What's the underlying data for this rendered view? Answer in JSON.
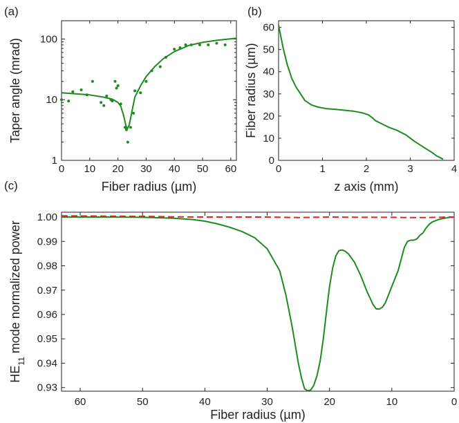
{
  "chart_data": [
    {
      "panel_label": "(a)",
      "type": "line",
      "xlabel": "Fiber radius (µm)",
      "ylabel": "Taper angle (mrad)",
      "y_scale": "log",
      "xlim": [
        0,
        62
      ],
      "ylim": [
        1,
        200
      ],
      "x_ticks": [
        0,
        10,
        20,
        30,
        40,
        50,
        60
      ],
      "y_ticks": [
        1,
        10,
        100
      ],
      "color": "#1e8a1e",
      "series": [
        {
          "style": "line",
          "x": [
            0,
            5,
            10,
            15,
            18,
            20,
            21,
            22,
            22.8,
            23.3,
            24,
            25,
            26,
            28,
            30,
            33,
            36,
            40,
            45,
            50,
            55,
            62
          ],
          "y": [
            13,
            12.5,
            12,
            11,
            10.2,
            9,
            7.8,
            5.5,
            3.8,
            3.3,
            3.8,
            6.5,
            11,
            17,
            24,
            35,
            47,
            62,
            78,
            88,
            95,
            103
          ]
        },
        {
          "style": "markers",
          "x": [
            0,
            2.5,
            4,
            7,
            9,
            11,
            14,
            15,
            16,
            17.5,
            18,
            19,
            19.5,
            20,
            21,
            22.5,
            23,
            23.5,
            24.5,
            25.5,
            26,
            28,
            30,
            32,
            35,
            37,
            40,
            42,
            44,
            46,
            49,
            52,
            55,
            58
          ],
          "y": [
            10,
            9.5,
            13.5,
            14.5,
            12,
            20,
            9,
            8,
            11.5,
            10,
            9.5,
            20,
            15.5,
            17,
            8.5,
            3.5,
            3.2,
            2.0,
            3.5,
            6,
            14,
            13,
            20,
            30,
            35,
            50,
            68,
            72,
            80,
            80,
            80,
            80,
            85,
            80
          ]
        }
      ]
    },
    {
      "panel_label": "(b)",
      "type": "line",
      "xlabel": "z axis (mm)",
      "ylabel": "Fiber radius (µm)",
      "xlim": [
        0,
        4
      ],
      "ylim": [
        0,
        63
      ],
      "x_ticks": [
        0,
        1,
        2,
        3,
        4
      ],
      "y_ticks": [
        0,
        10,
        20,
        30,
        40,
        50,
        60
      ],
      "color": "#1e8a1e",
      "series": [
        {
          "x": [
            0,
            0.05,
            0.1,
            0.2,
            0.3,
            0.4,
            0.5,
            0.6,
            0.75,
            0.9,
            1.1,
            1.3,
            1.5,
            1.7,
            1.9,
            2.05,
            2.15,
            2.2,
            2.3,
            2.5,
            2.7,
            2.9,
            3.0,
            3.1,
            3.3,
            3.5,
            3.6,
            3.7,
            3.75
          ],
          "y": [
            61,
            56,
            51,
            43,
            37,
            33,
            30,
            27,
            25,
            24,
            23.3,
            23,
            22.6,
            22.2,
            21.5,
            20.5,
            19,
            18,
            17,
            15,
            13.5,
            11.5,
            10,
            8.5,
            6,
            3.5,
            2,
            1,
            0.5
          ]
        }
      ]
    },
    {
      "panel_label": "(c)",
      "type": "line",
      "xlabel": "Fiber radius (µm)",
      "ylabel_main": "HE",
      "ylabel_sub": "11",
      "ylabel_rest": " mode normalized power",
      "x_reversed": true,
      "xlim": [
        63,
        0
      ],
      "ylim": [
        0.9285,
        1.002
      ],
      "x_ticks": [
        60,
        50,
        40,
        30,
        20,
        10,
        0
      ],
      "y_ticks": [
        "1.00",
        "0.99",
        "0.98",
        "0.97",
        "0.96",
        "0.95",
        "0.94",
        "0.93"
      ],
      "series": [
        {
          "style": "solid",
          "color": "#1e8a1e",
          "x": [
            63,
            55,
            50,
            45,
            42,
            40,
            38,
            36,
            34,
            32,
            30,
            28,
            27,
            26,
            25,
            24.5,
            24,
            23.5,
            23,
            22.5,
            22,
            21.5,
            21,
            20.5,
            20,
            19.5,
            19,
            18.5,
            18,
            17.5,
            17,
            16,
            15,
            14,
            13,
            12.5,
            12,
            11.5,
            11,
            10,
            9,
            8,
            7.5,
            7,
            6.5,
            6,
            5.5,
            5,
            4.5,
            4,
            3.5,
            3,
            2.5,
            2,
            1,
            0
          ],
          "y": [
            1.0,
            1.0,
            0.9999,
            0.9995,
            0.999,
            0.9983,
            0.9972,
            0.9958,
            0.994,
            0.9915,
            0.987,
            0.978,
            0.968,
            0.955,
            0.94,
            0.934,
            0.9295,
            0.9287,
            0.929,
            0.931,
            0.935,
            0.941,
            0.95,
            0.961,
            0.9715,
            0.979,
            0.984,
            0.9862,
            0.9865,
            0.986,
            0.985,
            0.9815,
            0.976,
            0.9695,
            0.964,
            0.9623,
            0.9622,
            0.963,
            0.965,
            0.9715,
            0.978,
            0.9875,
            0.99,
            0.9905,
            0.9905,
            0.991,
            0.9925,
            0.9935,
            0.9955,
            0.997,
            0.998,
            0.9985,
            0.999,
            0.9993,
            0.9998,
            1.0
          ]
        },
        {
          "style": "dashed",
          "color": "#e8231e",
          "x": [
            63,
            50,
            45,
            40,
            35,
            30,
            25,
            20,
            15,
            10,
            7,
            5,
            3,
            2,
            1,
            0
          ],
          "y": [
            1.0005,
            1.0003,
            1.0001,
            1.0,
            1.0,
            1.0,
            0.9998,
            1.0,
            0.9999,
            0.9999,
            0.9998,
            0.9998,
            0.9999,
            0.9999,
            1.0,
            1.0
          ]
        }
      ]
    }
  ]
}
